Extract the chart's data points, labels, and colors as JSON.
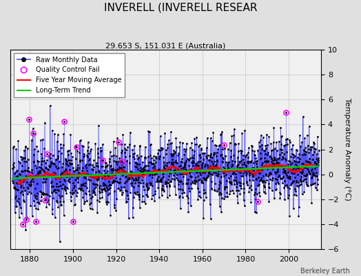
{
  "title": "INVERELL (INVERELL RESEAR",
  "subtitle": "29.653 S, 151.031 E (Australia)",
  "ylabel": "Temperature Anomaly (°C)",
  "credit": "Berkeley Earth",
  "ylim": [
    -6,
    10
  ],
  "yticks": [
    -6,
    -4,
    -2,
    0,
    2,
    4,
    6,
    8,
    10
  ],
  "year_start": 1872,
  "year_end": 2013,
  "bg_color": "#e0e0e0",
  "plot_bg_color": "#f0f0f0",
  "line_color": "#4444ff",
  "ma_color": "#ff0000",
  "trend_color": "#00cc00",
  "qc_color": "#ff00ff",
  "dot_color": "#000000",
  "seed": 42
}
